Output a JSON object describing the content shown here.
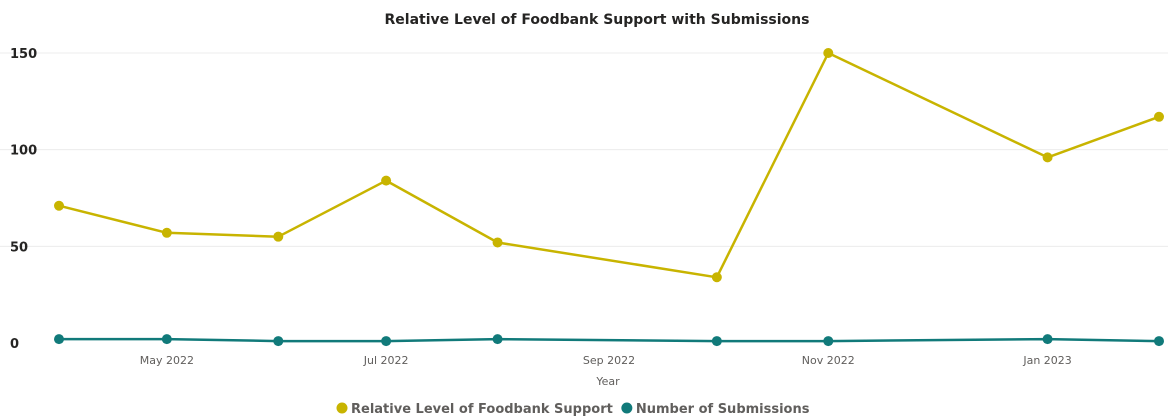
{
  "chart_data": {
    "type": "line",
    "title": "Relative Level of Foodbank Support with Submissions",
    "xlabel": "Year",
    "ylabel": "",
    "x": [
      "2022-04-01",
      "2022-05-01",
      "2022-06-01",
      "2022-07-01",
      "2022-08-01",
      "2022-10-01",
      "2022-11-01",
      "2023-01-01",
      "2023-02-01"
    ],
    "xlim": [
      "2022-04-01",
      "2023-02-01"
    ],
    "xticks": [
      {
        "date": "2022-05-01",
        "label": "May 2022"
      },
      {
        "date": "2022-07-01",
        "label": "Jul 2022"
      },
      {
        "date": "2022-09-01",
        "label": "Sep 2022"
      },
      {
        "date": "2022-11-01",
        "label": "Nov 2022"
      },
      {
        "date": "2023-01-01",
        "label": "Jan 2023"
      }
    ],
    "yticks": [
      0,
      50,
      100,
      150
    ],
    "ylim": [
      0,
      150
    ],
    "grid": true,
    "legend": "bottom-center",
    "series": [
      {
        "name": "Relative Level of Foodbank Support",
        "color": "#C8B400",
        "values": [
          71,
          57,
          55,
          84,
          52,
          34,
          150,
          96,
          117
        ]
      },
      {
        "name": "Number of Submissions",
        "color": "#117A7A",
        "values": [
          2,
          2,
          1,
          1,
          2,
          1,
          1,
          2,
          1
        ]
      }
    ]
  }
}
